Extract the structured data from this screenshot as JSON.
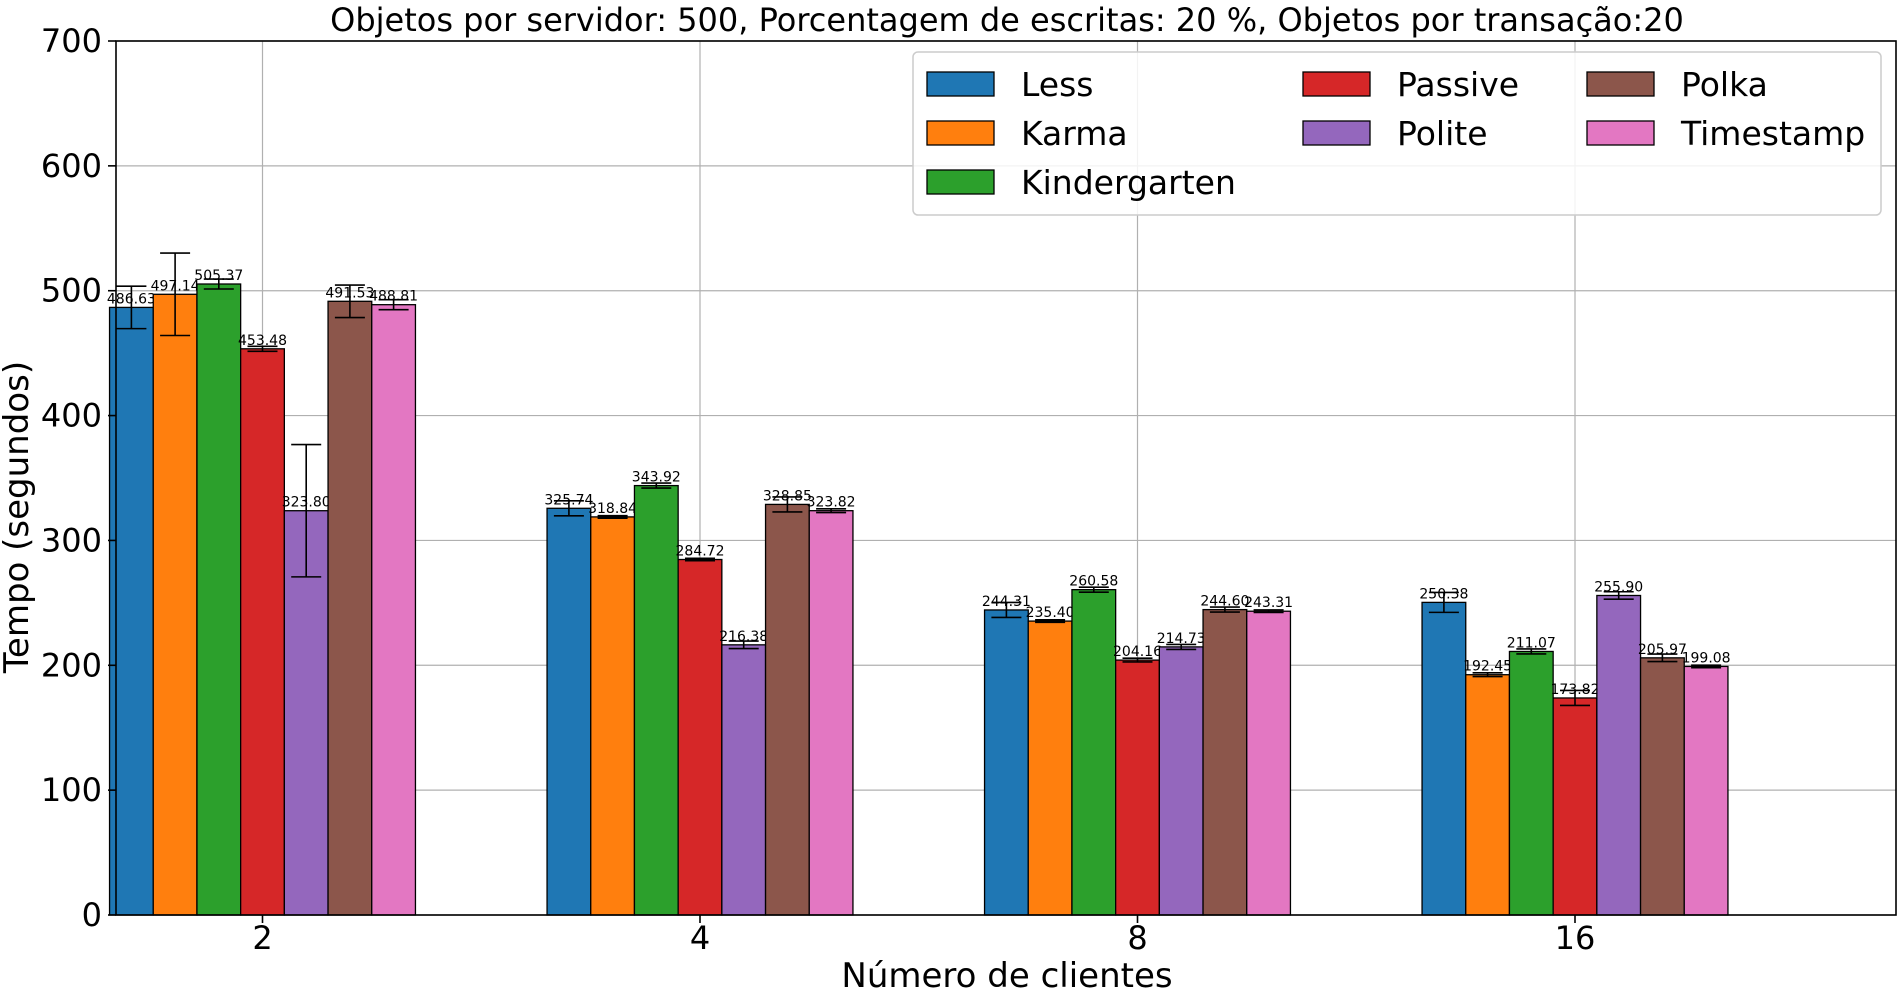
{
  "chart_data": {
    "type": "bar",
    "title": "Objetos por servidor: 500, Porcentagem de escritas: 20 %, Objetos por transação:20",
    "xlabel": "Número de clientes",
    "ylabel": "Tempo (segundos)",
    "categories": [
      "2",
      "4",
      "8",
      "16"
    ],
    "ylim": [
      0,
      700
    ],
    "yticks": [
      0,
      100,
      200,
      300,
      400,
      500,
      600,
      700
    ],
    "grid": true,
    "legend_position": "top-right",
    "series": [
      {
        "name": "Less",
        "color": "#1f77b4",
        "values": [
          486.63,
          325.74,
          244.31,
          250.38
        ],
        "err": [
          17,
          6,
          6,
          8
        ],
        "labels": [
          "486.63",
          "325.74",
          "244.31",
          "250.38"
        ]
      },
      {
        "name": "Karma",
        "color": "#ff7f0e",
        "values": [
          497.14,
          318.84,
          235.4,
          192.45
        ],
        "err": [
          33,
          1,
          1,
          1.5
        ],
        "labels": [
          "497.14",
          "318.84",
          "235.40",
          "192.45"
        ]
      },
      {
        "name": "Kindergarten",
        "color": "#2ca02c",
        "values": [
          505.37,
          343.92,
          260.58,
          211.07
        ],
        "err": [
          4,
          2,
          2,
          2
        ],
        "labels": [
          "505.37",
          "343.92",
          "260.58",
          "211.07"
        ]
      },
      {
        "name": "Passive",
        "color": "#d62728",
        "values": [
          453.48,
          284.72,
          204.16,
          173.82
        ],
        "err": [
          2,
          1,
          1.5,
          6
        ],
        "labels": [
          "453.48",
          "284.72",
          "204.16",
          "173.82"
        ]
      },
      {
        "name": "Polite",
        "color": "#9467bd",
        "values": [
          323.8,
          216.38,
          214.73,
          255.9
        ],
        "err": [
          53,
          3,
          2,
          3
        ],
        "labels": [
          "323.80",
          "216.38",
          "214.73",
          "255.90"
        ]
      },
      {
        "name": "Polka",
        "color": "#8c564b",
        "values": [
          491.53,
          328.85,
          244.6,
          205.97
        ],
        "err": [
          13,
          6,
          2,
          3
        ],
        "labels": [
          "491.53",
          "328.85",
          "244.60",
          "205.97"
        ]
      },
      {
        "name": "Timestamp",
        "color": "#e377c2",
        "values": [
          488.81,
          323.82,
          243.31,
          199.08
        ],
        "err": [
          4,
          1.5,
          1,
          1
        ],
        "labels": [
          "488.81",
          "323.82",
          "243.31",
          "199.08"
        ]
      }
    ]
  }
}
